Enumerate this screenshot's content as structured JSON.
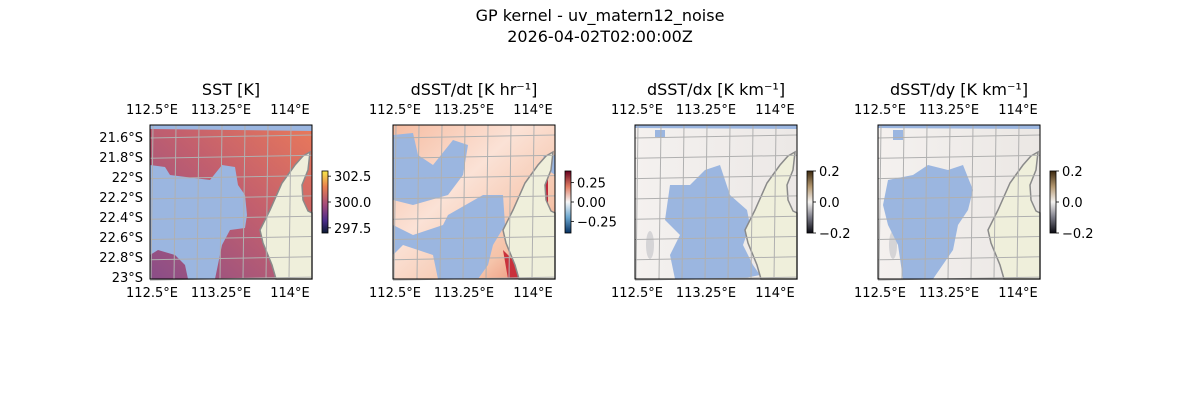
{
  "figure": {
    "title": "GP kernel - uv_matern12_noise",
    "subtitle": "2026-04-02T02:00:00Z"
  },
  "colors": {
    "mask": "#9bb6e0",
    "land": "#efefdb",
    "coast": "#8a8a8a",
    "grid": "#b0b0b0"
  },
  "chart_data": [
    {
      "type": "heatmap",
      "title": "SST [K]",
      "lon_ticks": [
        "112.5°E",
        "113.25°E",
        "114°E"
      ],
      "lat_ticks": [
        "21.6°S",
        "21.8°S",
        "22°S",
        "22.2°S",
        "22.4°S",
        "22.6°S",
        "22.8°S",
        "23°S"
      ],
      "colorbar": {
        "ticks": [
          "302.5",
          "300.0",
          "297.5"
        ],
        "range": [
          297,
          303
        ],
        "cmap": "thermal"
      }
    },
    {
      "type": "heatmap",
      "title": "dSST/dt [K hr⁻¹]",
      "lon_ticks": [
        "112.5°E",
        "113.25°E",
        "114°E"
      ],
      "lat_ticks": [],
      "colorbar": {
        "ticks": [
          "0.25",
          "0.00",
          "−0.25"
        ],
        "range": [
          -0.4,
          0.4
        ],
        "cmap": "RdBu_r"
      }
    },
    {
      "type": "heatmap",
      "title": "dSST/dx [K km⁻¹]",
      "lon_ticks": [
        "112.5°E",
        "113.25°E",
        "114°E"
      ],
      "lat_ticks": [],
      "colorbar": {
        "ticks": [
          "0.2",
          "0.0",
          "−0.2"
        ],
        "range": [
          -0.2,
          0.2
        ],
        "cmap": "diverging-brown"
      }
    },
    {
      "type": "heatmap",
      "title": "dSST/dy [K km⁻¹]",
      "lon_ticks": [
        "112.5°E",
        "113.25°E",
        "114°E"
      ],
      "lat_ticks": [],
      "colorbar": {
        "ticks": [
          "0.2",
          "0.0",
          "−0.2"
        ],
        "range": [
          -0.2,
          0.2
        ],
        "cmap": "diverging-brown"
      }
    }
  ]
}
